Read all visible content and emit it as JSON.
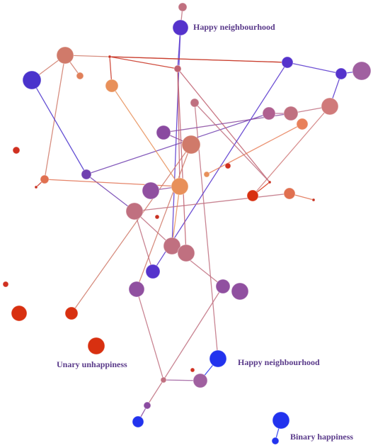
{
  "labels": [
    "Happy neighbourhood",
    "Happy neighbourhood",
    "Unary unhappiness",
    "Binary happiness"
  ]
}
